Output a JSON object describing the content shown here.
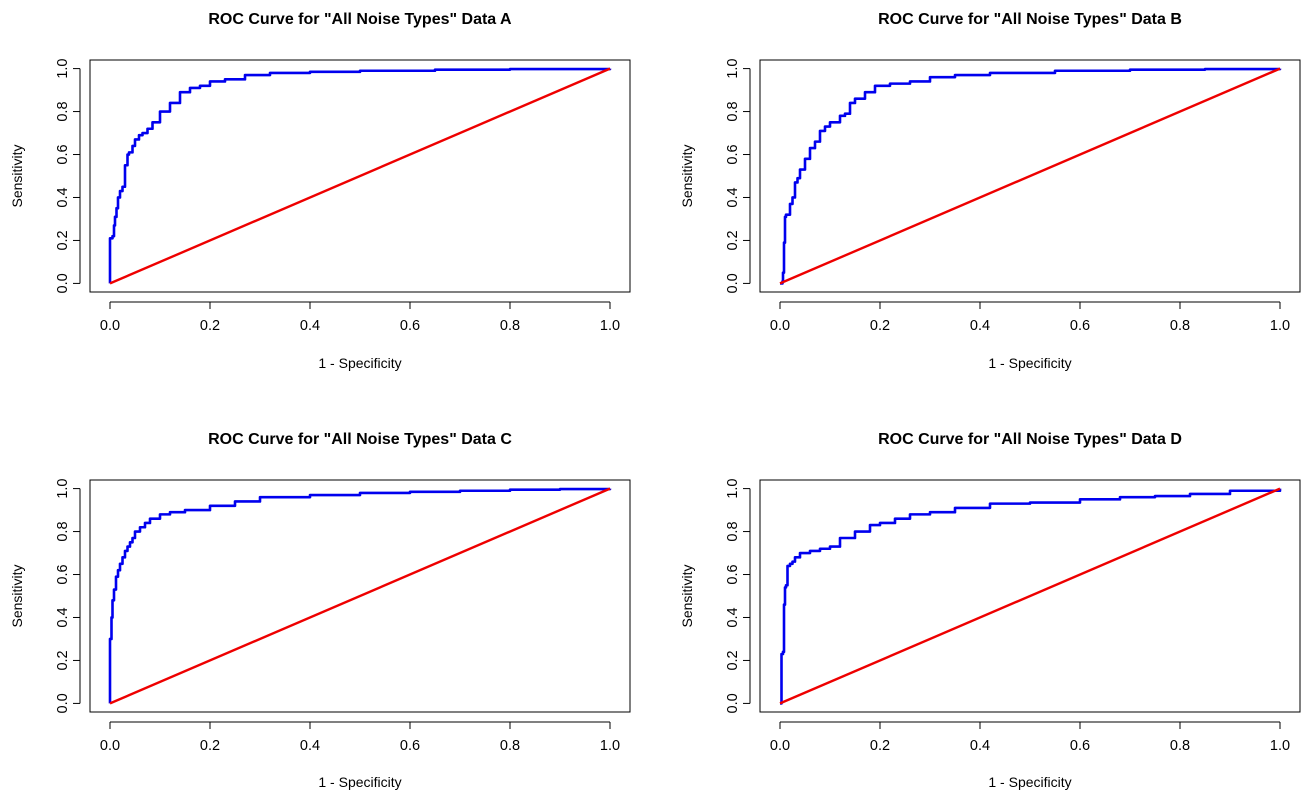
{
  "chart_data": [
    {
      "type": "line",
      "title": "ROC Curve for \"All Noise Types\" Data A",
      "xlabel": "1 - Specificity",
      "ylabel": "Sensitivity",
      "xlim": [
        0,
        1
      ],
      "ylim": [
        0,
        1
      ],
      "xticks": [
        "0.0",
        "0.2",
        "0.4",
        "0.6",
        "0.8",
        "1.0"
      ],
      "yticks": [
        "0.0",
        "0.2",
        "0.4",
        "0.6",
        "0.8",
        "1.0"
      ],
      "grid": false,
      "colors": {
        "roc": "#0000ee",
        "reference": "#ee0000"
      },
      "series": [
        {
          "x": [
            0,
            0,
            0.005,
            0.008,
            0.01,
            0.013,
            0.016,
            0.02,
            0.025,
            0.03,
            0.035,
            0.038,
            0.045,
            0.05,
            0.058,
            0.065,
            0.075,
            0.085,
            0.1,
            0.12,
            0.14,
            0.16,
            0.18,
            0.2,
            0.23,
            0.27,
            0.32,
            0.4,
            0.5,
            0.65,
            0.8,
            1.0
          ],
          "values": [
            0,
            0.21,
            0.22,
            0.27,
            0.31,
            0.35,
            0.4,
            0.43,
            0.45,
            0.55,
            0.6,
            0.61,
            0.64,
            0.67,
            0.69,
            0.7,
            0.72,
            0.75,
            0.8,
            0.84,
            0.89,
            0.91,
            0.92,
            0.94,
            0.95,
            0.97,
            0.98,
            0.985,
            0.99,
            0.995,
            0.998,
            1.0
          ]
        },
        {
          "x": [
            0,
            1
          ],
          "values": [
            0,
            1
          ]
        }
      ]
    },
    {
      "type": "line",
      "title": "ROC Curve for \"All Noise Types\" Data B",
      "xlabel": "1 - Specificity",
      "ylabel": "Sensitivity",
      "xlim": [
        0,
        1
      ],
      "ylim": [
        0,
        1
      ],
      "xticks": [
        "0.0",
        "0.2",
        "0.4",
        "0.6",
        "0.8",
        "1.0"
      ],
      "yticks": [
        "0.0",
        "0.2",
        "0.4",
        "0.6",
        "0.8",
        "1.0"
      ],
      "grid": false,
      "colors": {
        "roc": "#0000ee",
        "reference": "#ee0000"
      },
      "series": [
        {
          "x": [
            0,
            0.005,
            0.006,
            0.008,
            0.01,
            0.012,
            0.02,
            0.025,
            0.03,
            0.035,
            0.04,
            0.05,
            0.06,
            0.07,
            0.08,
            0.09,
            0.1,
            0.12,
            0.13,
            0.14,
            0.15,
            0.17,
            0.19,
            0.22,
            0.26,
            0.3,
            0.35,
            0.42,
            0.55,
            0.7,
            0.85,
            1.0
          ],
          "values": [
            0,
            0.01,
            0.05,
            0.19,
            0.31,
            0.32,
            0.37,
            0.4,
            0.47,
            0.49,
            0.53,
            0.58,
            0.63,
            0.66,
            0.71,
            0.73,
            0.75,
            0.78,
            0.79,
            0.84,
            0.86,
            0.89,
            0.92,
            0.93,
            0.94,
            0.96,
            0.97,
            0.98,
            0.99,
            0.995,
            0.998,
            1.0
          ]
        },
        {
          "x": [
            0,
            1
          ],
          "values": [
            0,
            1
          ]
        }
      ]
    },
    {
      "type": "line",
      "title": "ROC Curve for \"All Noise Types\" Data C",
      "xlabel": "1 - Specificity",
      "ylabel": "Sensitivity",
      "xlim": [
        0,
        1
      ],
      "ylim": [
        0,
        1
      ],
      "xticks": [
        "0.0",
        "0.2",
        "0.4",
        "0.6",
        "0.8",
        "1.0"
      ],
      "yticks": [
        "0.0",
        "0.2",
        "0.4",
        "0.6",
        "0.8",
        "1.0"
      ],
      "grid": false,
      "colors": {
        "roc": "#0000ee",
        "reference": "#ee0000"
      },
      "series": [
        {
          "x": [
            0,
            0,
            0.003,
            0.005,
            0.008,
            0.012,
            0.016,
            0.02,
            0.025,
            0.03,
            0.035,
            0.04,
            0.045,
            0.05,
            0.06,
            0.07,
            0.08,
            0.1,
            0.12,
            0.15,
            0.2,
            0.25,
            0.3,
            0.4,
            0.5,
            0.6,
            0.7,
            0.8,
            0.9,
            1.0
          ],
          "values": [
            0,
            0.3,
            0.4,
            0.48,
            0.53,
            0.59,
            0.62,
            0.65,
            0.68,
            0.71,
            0.73,
            0.75,
            0.77,
            0.8,
            0.82,
            0.84,
            0.86,
            0.88,
            0.89,
            0.9,
            0.92,
            0.94,
            0.96,
            0.97,
            0.98,
            0.985,
            0.99,
            0.995,
            0.998,
            1.0
          ]
        },
        {
          "x": [
            0,
            1
          ],
          "values": [
            0,
            1
          ]
        }
      ]
    },
    {
      "type": "line",
      "title": "ROC Curve for \"All Noise Types\" Data D",
      "xlabel": "1 - Specificity",
      "ylabel": "Sensitivity",
      "xlim": [
        0,
        1
      ],
      "ylim": [
        0,
        1
      ],
      "xticks": [
        "0.0",
        "0.2",
        "0.4",
        "0.6",
        "0.8",
        "1.0"
      ],
      "yticks": [
        "0.0",
        "0.2",
        "0.4",
        "0.6",
        "0.8",
        "1.0"
      ],
      "grid": false,
      "colors": {
        "roc": "#0000ee",
        "reference": "#ee0000"
      },
      "series": [
        {
          "x": [
            0,
            0.003,
            0.006,
            0.008,
            0.01,
            0.012,
            0.015,
            0.02,
            0.025,
            0.03,
            0.04,
            0.06,
            0.08,
            0.1,
            0.12,
            0.15,
            0.18,
            0.2,
            0.23,
            0.26,
            0.3,
            0.35,
            0.42,
            0.5,
            0.6,
            0.68,
            0.75,
            0.82,
            0.9,
            1.0
          ],
          "values": [
            0,
            0.23,
            0.24,
            0.46,
            0.54,
            0.55,
            0.64,
            0.65,
            0.66,
            0.68,
            0.7,
            0.71,
            0.72,
            0.73,
            0.77,
            0.8,
            0.83,
            0.84,
            0.86,
            0.88,
            0.89,
            0.91,
            0.93,
            0.935,
            0.95,
            0.96,
            0.965,
            0.975,
            0.99,
            1.0
          ]
        },
        {
          "x": [
            0,
            1
          ],
          "values": [
            0,
            1
          ]
        }
      ]
    }
  ]
}
